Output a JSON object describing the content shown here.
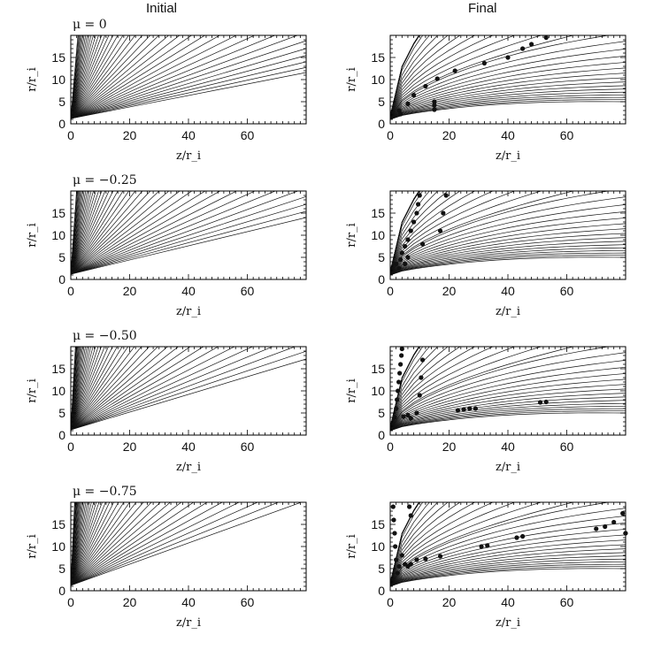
{
  "columns": {
    "left": "Initial",
    "right": "Final"
  },
  "chart_data": [
    {
      "type": "line",
      "title": "μ = 0",
      "column": "Initial",
      "xlabel": "z/r_i",
      "ylabel": "r/r_i",
      "xlim": [
        0,
        80
      ],
      "ylim": [
        0,
        20
      ],
      "xticks": [
        0,
        20,
        40,
        60
      ],
      "yticks": [
        0,
        5,
        10,
        15
      ],
      "series": [
        {
          "family": "streamlines",
          "count": 40,
          "description_of_values": "lines from origin",
          "end_r_at_z80": [
            10.5,
            14,
            16,
            17.5,
            18.5,
            19.5
          ]
        }
      ],
      "points": []
    },
    {
      "type": "line",
      "title": "μ = −0.25",
      "column": "Initial",
      "xlabel": "z/r_i",
      "ylabel": "r/r_i",
      "xlim": [
        0,
        80
      ],
      "ylim": [
        0,
        20
      ],
      "xticks": [
        0,
        20,
        40,
        60
      ],
      "yticks": [
        0,
        5,
        10,
        15
      ],
      "series": [
        {
          "family": "streamlines",
          "count": 40,
          "end_r_at_z80": [
            12.5,
            16,
            18.5
          ]
        }
      ],
      "points": []
    },
    {
      "type": "line",
      "title": "μ = −0.50",
      "column": "Initial",
      "xlabel": "z/r_i",
      "ylabel": "r/r_i",
      "xlim": [
        0,
        80
      ],
      "ylim": [
        0,
        20
      ],
      "xticks": [
        0,
        20,
        40,
        60
      ],
      "yticks": [
        0,
        5,
        10,
        15
      ],
      "series": [
        {
          "family": "streamlines",
          "count": 40,
          "end_r_at_z80": [
            15.5,
            19.5
          ]
        }
      ],
      "points": []
    },
    {
      "type": "line",
      "title": "μ = −0.75",
      "column": "Initial",
      "xlabel": "z/r_i",
      "ylabel": "r/r_i",
      "xlim": [
        0,
        80
      ],
      "ylim": [
        0,
        20
      ],
      "xticks": [
        0,
        20,
        40,
        60
      ],
      "yticks": [
        0,
        5,
        10,
        15
      ],
      "series": [
        {
          "family": "streamlines",
          "count": 40,
          "end_r_at_z80": [
            18.5
          ]
        }
      ],
      "points": []
    },
    {
      "type": "scatter",
      "title": "",
      "column": "Final",
      "row": 1,
      "xlabel": "z/r_i",
      "ylabel": "r/r_i",
      "xlim": [
        0,
        80
      ],
      "ylim": [
        0,
        20
      ],
      "xticks": [
        0,
        20,
        40,
        60
      ],
      "yticks": [
        0,
        5,
        10,
        15
      ],
      "series": [
        {
          "family": "streamlines",
          "count": 40
        }
      ],
      "points": [
        [
          3,
          3
        ],
        [
          3.5,
          2.2
        ],
        [
          6,
          4.5
        ],
        [
          8,
          6.5
        ],
        [
          12,
          8.5
        ],
        [
          16,
          10.2
        ],
        [
          22,
          12
        ],
        [
          32,
          13.7
        ],
        [
          40,
          15
        ],
        [
          45,
          17
        ],
        [
          48,
          18
        ],
        [
          53,
          19.5
        ],
        [
          15,
          5
        ],
        [
          15,
          4.2
        ],
        [
          15,
          3.2
        ]
      ]
    },
    {
      "type": "scatter",
      "title": "",
      "column": "Final",
      "row": 2,
      "xlabel": "z/r_i",
      "ylabel": "r/r_i",
      "xlim": [
        0,
        80
      ],
      "ylim": [
        0,
        20
      ],
      "xticks": [
        0,
        20,
        40,
        60
      ],
      "yticks": [
        0,
        5,
        10,
        15
      ],
      "series": [
        {
          "family": "streamlines",
          "count": 40
        }
      ],
      "points": [
        [
          2,
          3.5
        ],
        [
          3,
          2.5
        ],
        [
          3.5,
          4.5
        ],
        [
          4,
          6
        ],
        [
          5,
          7.5
        ],
        [
          6,
          9
        ],
        [
          7,
          11
        ],
        [
          8,
          13
        ],
        [
          9,
          15
        ],
        [
          9.5,
          17
        ],
        [
          10,
          19
        ],
        [
          11,
          8
        ],
        [
          6,
          5
        ],
        [
          5,
          3.5
        ],
        [
          17,
          11
        ],
        [
          18,
          15
        ],
        [
          19,
          19
        ]
      ]
    },
    {
      "type": "scatter",
      "title": "",
      "column": "Final",
      "row": 3,
      "xlabel": "z/r_i",
      "ylabel": "r/r_i",
      "xlim": [
        0,
        80
      ],
      "ylim": [
        0,
        20
      ],
      "xticks": [
        0,
        20,
        40,
        60
      ],
      "yticks": [
        0,
        5,
        10,
        15
      ],
      "series": [
        {
          "family": "streamlines",
          "count": 40
        }
      ],
      "points": [
        [
          1.5,
          4
        ],
        [
          2,
          6
        ],
        [
          2.3,
          8
        ],
        [
          2.6,
          10
        ],
        [
          2.9,
          12
        ],
        [
          3.2,
          14
        ],
        [
          3.5,
          16
        ],
        [
          3.8,
          18
        ],
        [
          4,
          19.5
        ],
        [
          4.5,
          4.2
        ],
        [
          6,
          4.5
        ],
        [
          7,
          3.8
        ],
        [
          9,
          5
        ],
        [
          10,
          9
        ],
        [
          10.5,
          13
        ],
        [
          11,
          17
        ],
        [
          23,
          5.6
        ],
        [
          25,
          5.8
        ],
        [
          27,
          6
        ],
        [
          29,
          6
        ],
        [
          51,
          7.4
        ],
        [
          53,
          7.5
        ]
      ]
    },
    {
      "type": "scatter",
      "title": "",
      "column": "Final",
      "row": 4,
      "xlabel": "z/r_i",
      "ylabel": "r/r_i",
      "xlim": [
        0,
        80
      ],
      "ylim": [
        0,
        20
      ],
      "xticks": [
        0,
        20,
        40,
        60
      ],
      "yticks": [
        0,
        5,
        10,
        15
      ],
      "series": [
        {
          "family": "streamlines",
          "count": 40
        }
      ],
      "points": [
        [
          1,
          19
        ],
        [
          1.2,
          16
        ],
        [
          1.5,
          13
        ],
        [
          1.7,
          10
        ],
        [
          2,
          7
        ],
        [
          2.5,
          4
        ],
        [
          3,
          5.5
        ],
        [
          4,
          8
        ],
        [
          5,
          6
        ],
        [
          6,
          5.5
        ],
        [
          7,
          6
        ],
        [
          9,
          7
        ],
        [
          12,
          7.2
        ],
        [
          17,
          7.8
        ],
        [
          31,
          10
        ],
        [
          33,
          10.2
        ],
        [
          43,
          12
        ],
        [
          45,
          12.3
        ],
        [
          70,
          14
        ],
        [
          73,
          14.5
        ],
        [
          76,
          15.5
        ],
        [
          79,
          17.5
        ],
        [
          80,
          13
        ],
        [
          7,
          17
        ],
        [
          6.5,
          19
        ]
      ]
    }
  ]
}
